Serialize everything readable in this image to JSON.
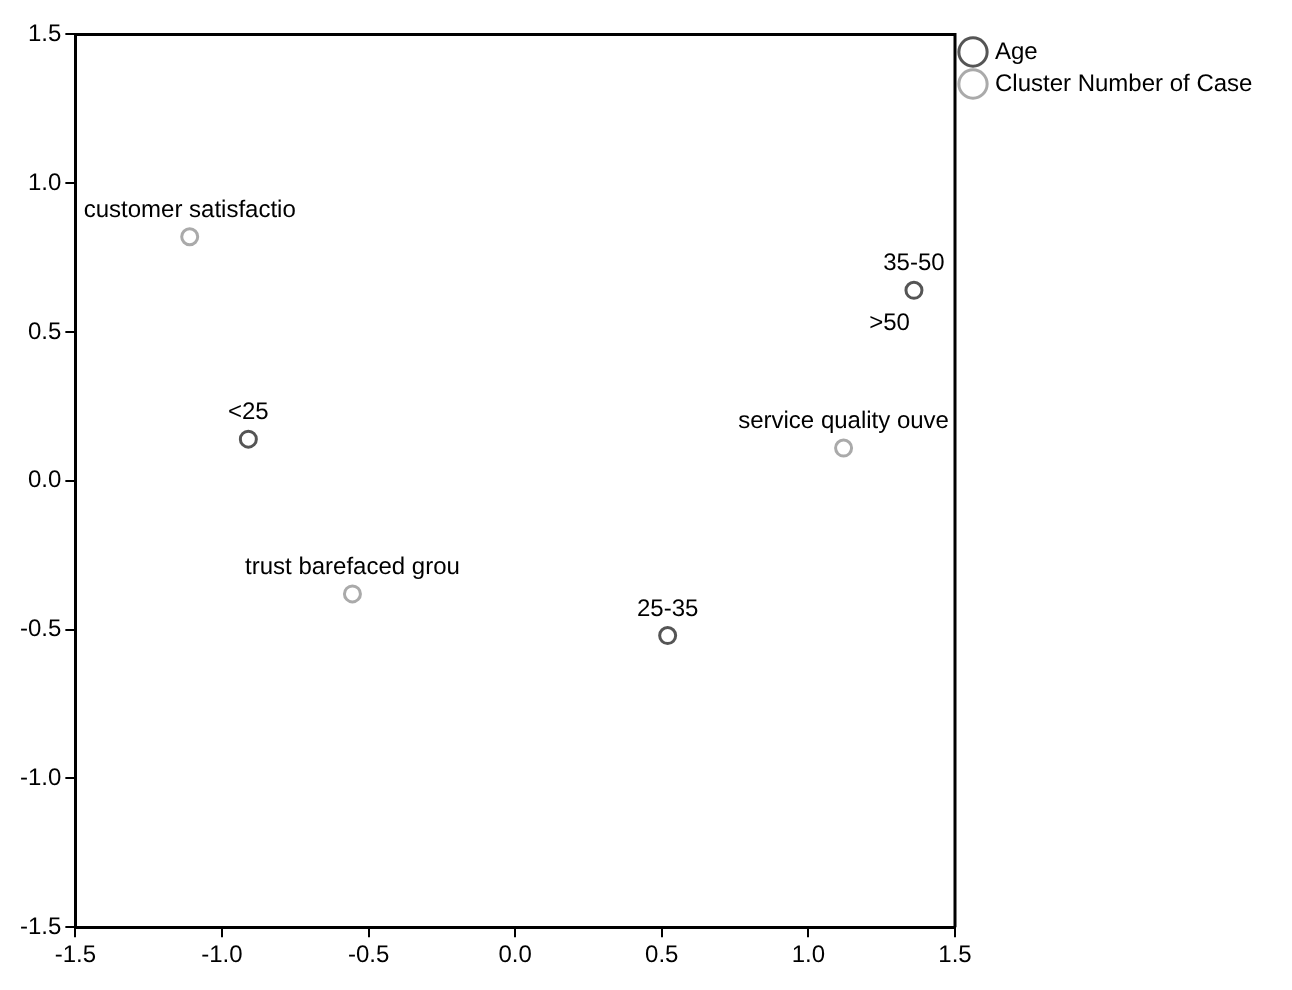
{
  "chart_data": {
    "type": "scatter",
    "series": [
      {
        "name": "Age",
        "color": "#555555",
        "x": [
          -0.91,
          0.52,
          1.36,
          null
        ],
        "values": [
          0.14,
          -0.52,
          0.64,
          null
        ]
      },
      {
        "name": "Cluster Number of Case",
        "color": "#aaaaaa",
        "x": [
          -1.11,
          -0.555,
          1.12
        ],
        "values": [
          0.82,
          -0.38,
          0.11
        ]
      }
    ],
    "annotations": [
      {
        "text": "<25",
        "x": -0.91,
        "y": 0.14
      },
      {
        "text": "25-35",
        "x": 0.52,
        "y": -0.52
      },
      {
        "text": "35-50",
        "x": 1.36,
        "y": 0.64
      },
      {
        "text": ">50",
        "x": 1.36,
        "y": 0.64
      },
      {
        "text": "customer satisfactio",
        "x": -1.11,
        "y": 0.82
      },
      {
        "text": "trust barefaced grou",
        "x": -0.555,
        "y": -0.38
      },
      {
        "text": "service quality ouve",
        "x": 1.12,
        "y": 0.11
      }
    ],
    "xlim": [
      -1.5,
      1.5
    ],
    "xticks": [
      -1.5,
      {
        "value": -1,
        "label": "-1.0"
      },
      -0.5,
      {
        "value": 0,
        "label": "0.0"
      },
      0.5,
      {
        "value": 1,
        "label": "1.0"
      },
      1.5
    ],
    "ylim": [
      -1.5,
      1.5
    ],
    "yticks": [
      -1.5,
      {
        "value": -1,
        "label": "-1.0"
      },
      -0.5,
      {
        "value": 0,
        "label": "0.0"
      },
      0.5,
      {
        "value": 1,
        "label": "1.0"
      },
      1.5
    ],
    "marker": "circle",
    "legend": "top right"
  }
}
